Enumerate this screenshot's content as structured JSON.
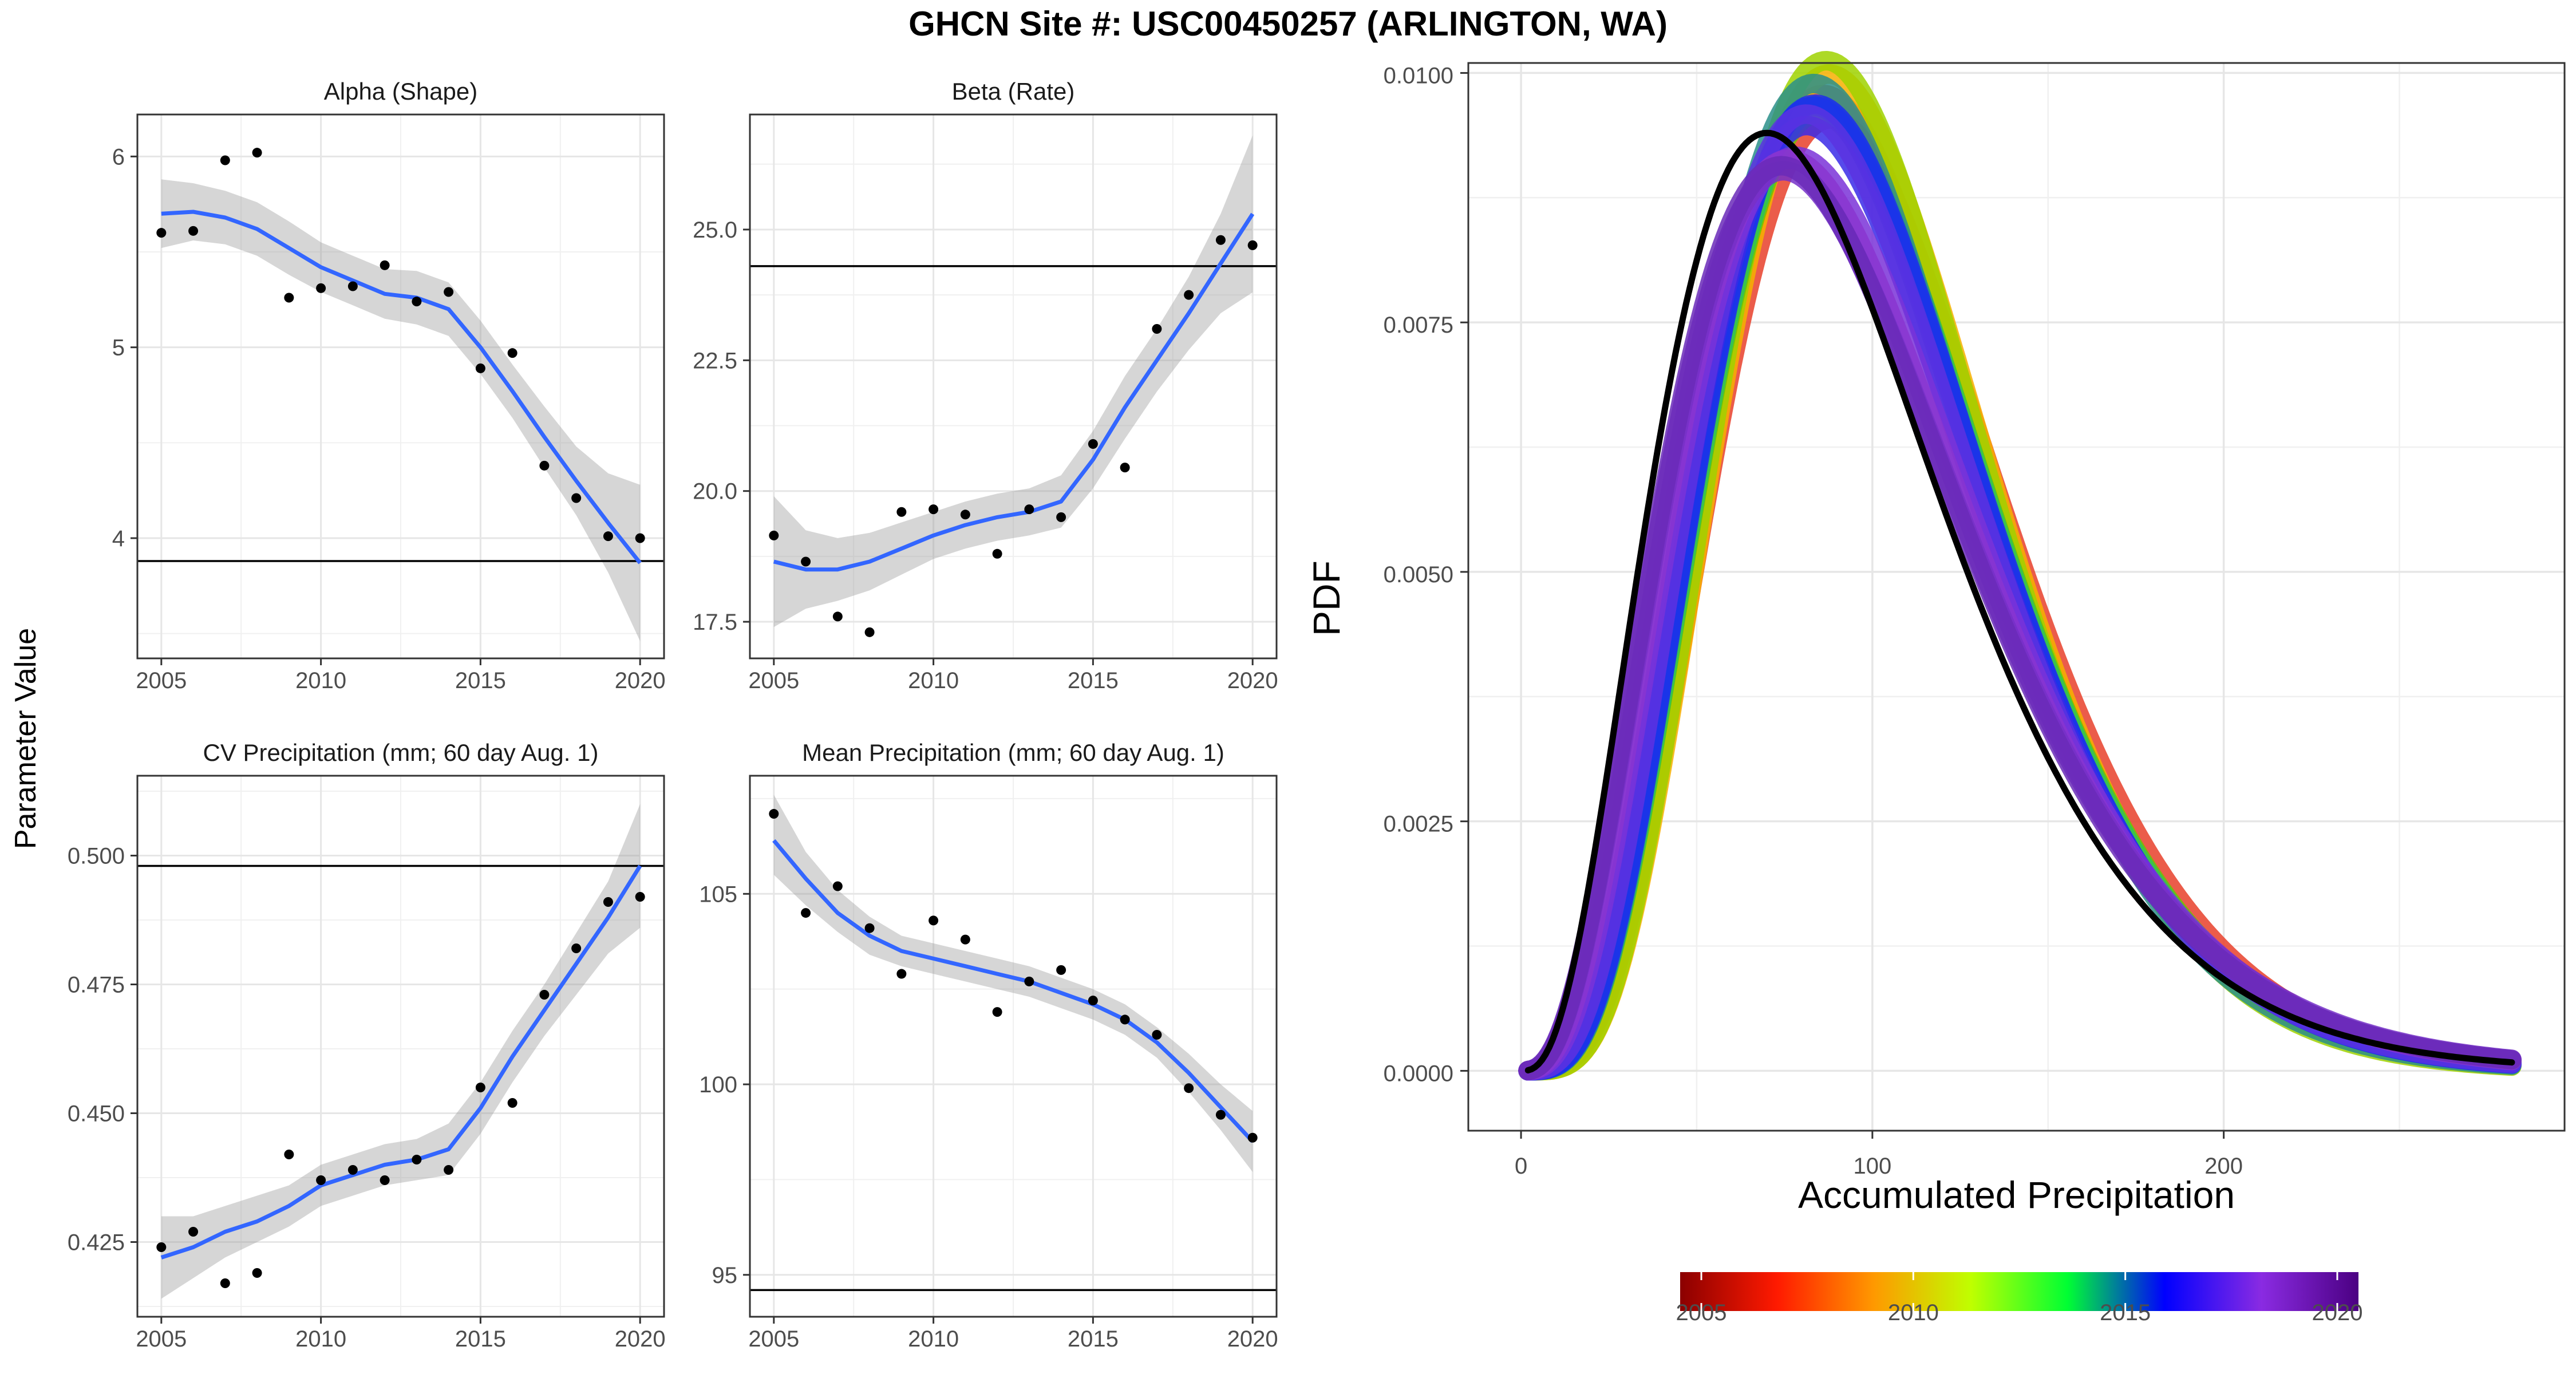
{
  "figure": {
    "title": "GHCN Site #: USC00450257 (ARLINGTON, WA)",
    "left_ylabel": "Parameter Value"
  },
  "chart_data": [
    {
      "id": "alpha",
      "type": "scatter",
      "title": "Alpha (Shape)",
      "x": [
        2005,
        2006,
        2007,
        2008,
        2009,
        2010,
        2011,
        2012,
        2013,
        2014,
        2015,
        2016,
        2017,
        2018,
        2019,
        2020
      ],
      "y": [
        5.6,
        5.61,
        5.98,
        6.02,
        5.26,
        5.31,
        5.32,
        5.43,
        5.24,
        5.29,
        4.89,
        4.97,
        4.38,
        4.21,
        4.01,
        4.0
      ],
      "smooth": [
        5.7,
        5.71,
        5.68,
        5.62,
        5.52,
        5.42,
        5.35,
        5.28,
        5.26,
        5.2,
        5.0,
        4.77,
        4.53,
        4.3,
        4.08,
        3.87
      ],
      "band_lo": [
        5.52,
        5.56,
        5.54,
        5.48,
        5.38,
        5.29,
        5.22,
        5.15,
        5.12,
        5.06,
        4.86,
        4.63,
        4.37,
        4.12,
        3.82,
        3.46
      ],
      "band_hi": [
        5.88,
        5.86,
        5.82,
        5.76,
        5.66,
        5.55,
        5.48,
        5.41,
        5.4,
        5.34,
        5.14,
        4.91,
        4.69,
        4.48,
        4.34,
        4.28
      ],
      "hline": 3.88,
      "xlim": [
        2004.25,
        2020.75
      ],
      "ylim": [
        3.37,
        6.22
      ],
      "xticks": [
        2005,
        2010,
        2015,
        2020
      ],
      "yticks": [
        4,
        5,
        6
      ],
      "ytick_labels": [
        "4",
        "5",
        "6"
      ],
      "grid": true
    },
    {
      "id": "beta",
      "type": "scatter",
      "title": "Beta (Rate)",
      "x": [
        2005,
        2006,
        2007,
        2008,
        2009,
        2010,
        2011,
        2012,
        2013,
        2014,
        2015,
        2016,
        2017,
        2018,
        2019,
        2020
      ],
      "y": [
        19.15,
        18.65,
        17.6,
        17.3,
        19.6,
        19.65,
        19.55,
        18.8,
        19.65,
        19.5,
        20.9,
        20.45,
        23.1,
        23.75,
        24.8,
        24.7
      ],
      "smooth": [
        18.65,
        18.5,
        18.5,
        18.65,
        18.9,
        19.15,
        19.35,
        19.5,
        19.6,
        19.8,
        20.6,
        21.6,
        22.5,
        23.4,
        24.35,
        25.3
      ],
      "band_lo": [
        17.4,
        17.75,
        17.9,
        18.1,
        18.4,
        18.7,
        18.9,
        19.05,
        19.15,
        19.3,
        20.05,
        21.0,
        21.9,
        22.7,
        23.4,
        23.8
      ],
      "band_hi": [
        19.9,
        19.25,
        19.1,
        19.2,
        19.4,
        19.6,
        19.8,
        19.95,
        20.05,
        20.3,
        21.15,
        22.2,
        23.1,
        24.1,
        25.3,
        26.8
      ],
      "hline": 24.3,
      "xlim": [
        2004.25,
        2020.75
      ],
      "ylim": [
        16.8,
        27.2
      ],
      "xticks": [
        2005,
        2010,
        2015,
        2020
      ],
      "yticks": [
        17.5,
        20.0,
        22.5,
        25.0
      ],
      "ytick_labels": [
        "17.5",
        "20.0",
        "22.5",
        "25.0"
      ],
      "grid": true
    },
    {
      "id": "cv",
      "type": "scatter",
      "title": "CV Precipitation (mm; 60 day Aug. 1)",
      "x": [
        2005,
        2006,
        2007,
        2008,
        2009,
        2010,
        2011,
        2012,
        2013,
        2014,
        2015,
        2016,
        2017,
        2018,
        2019,
        2020
      ],
      "y": [
        0.424,
        0.427,
        0.417,
        0.419,
        0.442,
        0.437,
        0.439,
        0.437,
        0.441,
        0.439,
        0.455,
        0.452,
        0.473,
        0.482,
        0.491,
        0.492
      ],
      "smooth": [
        0.422,
        0.424,
        0.427,
        0.429,
        0.432,
        0.436,
        0.438,
        0.44,
        0.441,
        0.443,
        0.451,
        0.461,
        0.47,
        0.479,
        0.488,
        0.498
      ],
      "band_lo": [
        0.414,
        0.418,
        0.422,
        0.425,
        0.428,
        0.432,
        0.434,
        0.436,
        0.437,
        0.438,
        0.446,
        0.456,
        0.465,
        0.473,
        0.481,
        0.486
      ],
      "band_hi": [
        0.43,
        0.43,
        0.432,
        0.434,
        0.436,
        0.44,
        0.442,
        0.444,
        0.445,
        0.448,
        0.456,
        0.466,
        0.475,
        0.485,
        0.495,
        0.51
      ],
      "hline": 0.498,
      "xlim": [
        2004.25,
        2020.75
      ],
      "ylim": [
        0.4105,
        0.5155
      ],
      "xticks": [
        2005,
        2010,
        2015,
        2020
      ],
      "yticks": [
        0.425,
        0.45,
        0.475,
        0.5
      ],
      "ytick_labels": [
        "0.425",
        "0.450",
        "0.475",
        "0.500"
      ],
      "grid": true
    },
    {
      "id": "mean",
      "type": "scatter",
      "title": "Mean Precipitation (mm; 60 day Aug. 1)",
      "x": [
        2005,
        2006,
        2007,
        2008,
        2009,
        2010,
        2011,
        2012,
        2013,
        2014,
        2015,
        2016,
        2017,
        2018,
        2019,
        2020
      ],
      "y": [
        107.1,
        104.5,
        105.2,
        104.1,
        102.9,
        104.3,
        103.8,
        101.9,
        102.7,
        103.0,
        102.2,
        101.7,
        101.3,
        99.9,
        99.2,
        98.6
      ],
      "smooth": [
        106.4,
        105.4,
        104.5,
        103.9,
        103.5,
        103.3,
        103.1,
        102.9,
        102.7,
        102.4,
        102.1,
        101.7,
        101.1,
        100.3,
        99.4,
        98.5
      ],
      "band_lo": [
        105.5,
        104.7,
        104.0,
        103.4,
        103.1,
        102.9,
        102.7,
        102.5,
        102.3,
        102.0,
        101.7,
        101.3,
        100.7,
        99.8,
        98.8,
        97.7
      ],
      "band_hi": [
        107.6,
        106.1,
        105.1,
        104.4,
        103.9,
        103.7,
        103.5,
        103.3,
        103.1,
        102.8,
        102.5,
        102.1,
        101.5,
        100.8,
        100.0,
        99.3
      ],
      "hline": 94.6,
      "xlim": [
        2004.25,
        2020.75
      ],
      "ylim": [
        93.9,
        108.1
      ],
      "xticks": [
        2005,
        2010,
        2015,
        2020
      ],
      "yticks": [
        95,
        100,
        105
      ],
      "ytick_labels": [
        "95",
        "100",
        "105"
      ],
      "grid": true
    },
    {
      "id": "pdf",
      "type": "line",
      "xlabel": "Accumulated Precipitation",
      "ylabel": "PDF",
      "xlim": [
        -15,
        297
      ],
      "ylim": [
        -0.0006,
        0.0101
      ],
      "xticks": [
        0,
        100,
        200
      ],
      "xtick_labels": [
        "0",
        "100",
        "200"
      ],
      "yticks": [
        0,
        0.0025,
        0.005,
        0.0075,
        0.01
      ],
      "ytick_labels": [
        "0.0000",
        "0.0025",
        "0.0050",
        "0.0075",
        "0.0100"
      ],
      "x_range": [
        2,
        282
      ],
      "grid": true,
      "series": [
        {
          "year": 2005,
          "shape": 5.6,
          "rate": 19.15,
          "color": "#e8402a"
        },
        {
          "year": 2006,
          "shape": 5.61,
          "rate": 18.65,
          "color": "#ee5a20"
        },
        {
          "year": 2007,
          "shape": 5.98,
          "rate": 17.6,
          "color": "#f7b000"
        },
        {
          "year": 2008,
          "shape": 6.02,
          "rate": 17.3,
          "color": "#9fd200"
        },
        {
          "year": 2009,
          "shape": 5.26,
          "rate": 19.6,
          "color": "#58d000"
        },
        {
          "year": 2010,
          "shape": 5.31,
          "rate": 19.65,
          "color": "#6cc400"
        },
        {
          "year": 2011,
          "shape": 5.32,
          "rate": 19.55,
          "color": "#2ec25a"
        },
        {
          "year": 2012,
          "shape": 5.43,
          "rate": 18.8,
          "color": "#2a8f8a"
        },
        {
          "year": 2013,
          "shape": 5.24,
          "rate": 19.65,
          "color": "#1f5fd0"
        },
        {
          "year": 2014,
          "shape": 5.29,
          "rate": 19.5,
          "color": "#1a2cf0"
        },
        {
          "year": 2015,
          "shape": 4.89,
          "rate": 20.9,
          "color": "#3a2ae8"
        },
        {
          "year": 2016,
          "shape": 4.97,
          "rate": 20.45,
          "color": "#5a32e0"
        },
        {
          "year": 2017,
          "shape": 4.38,
          "rate": 23.1,
          "color": "#7a32d8"
        },
        {
          "year": 2018,
          "shape": 4.21,
          "rate": 23.75,
          "color": "#8a35d0"
        },
        {
          "year": 2019,
          "shape": 4.01,
          "rate": 24.8,
          "color": "#7630c8"
        },
        {
          "year": 2020,
          "shape": 4.0,
          "rate": 24.7,
          "color": "#6a2ab8"
        }
      ],
      "reference": {
        "shape": 3.88,
        "rate": 24.3,
        "color": "#000000"
      },
      "colorbar": {
        "range": [
          2004.5,
          2020.5
        ],
        "ticks": [
          2005,
          2010,
          2015,
          2020
        ],
        "tick_labels": [
          "2005",
          "2010",
          "2015",
          "2020"
        ],
        "colors": [
          "#8b0000",
          "#ff1a00",
          "#ff9900",
          "#bfff00",
          "#00ff33",
          "#0000ff",
          "#8a2be2",
          "#4b0082"
        ]
      }
    }
  ]
}
